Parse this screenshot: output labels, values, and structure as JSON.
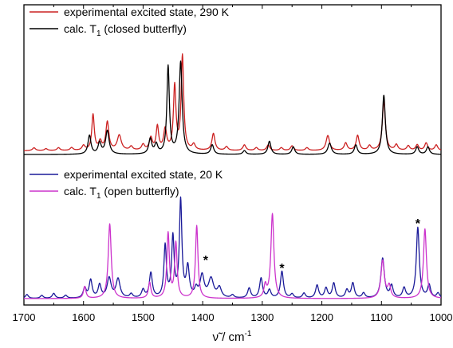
{
  "chart_data": {
    "type": "line",
    "xlabel": "ν̃ / cm",
    "xlabel_superscript": "-1",
    "xlim": [
      1700,
      1000
    ],
    "x_reversed": true,
    "x_ticks": [
      1700,
      1600,
      1500,
      1400,
      1300,
      1200,
      1100,
      1000
    ],
    "panels": [
      {
        "position": "top",
        "legend": [
          {
            "series": "exp290",
            "label": "experimental excited state, 290 K"
          },
          {
            "series": "calc_closed",
            "label_main": "calc. T",
            "label_sub": "1",
            "label_tail": " (closed butterfly)"
          }
        ],
        "series": [
          {
            "id": "exp290",
            "color": "#cc2222",
            "baseline": 0.04,
            "peaks": [
              [
                1683,
                0.03,
                3
              ],
              [
                1663,
                0.02,
                3
              ],
              [
                1642,
                0.03,
                3
              ],
              [
                1620,
                0.03,
                3
              ],
              [
                1600,
                0.05,
                3
              ],
              [
                1584,
                0.38,
                2.5
              ],
              [
                1572,
                0.09,
                3
              ],
              [
                1560,
                0.3,
                3
              ],
              [
                1540,
                0.16,
                4
              ],
              [
                1520,
                0.04,
                3
              ],
              [
                1500,
                0.06,
                3
              ],
              [
                1487,
                0.13,
                3
              ],
              [
                1476,
                0.25,
                2.5
              ],
              [
                1463,
                0.22,
                3
              ],
              [
                1447,
                0.68,
                2.5
              ],
              [
                1434,
                1.0,
                2.5
              ],
              [
                1415,
                0.06,
                3
              ],
              [
                1382,
                0.18,
                3
              ],
              [
                1360,
                0.04,
                3
              ],
              [
                1330,
                0.06,
                3
              ],
              [
                1310,
                0.03,
                3
              ],
              [
                1290,
                0.06,
                3
              ],
              [
                1268,
                0.03,
                3
              ],
              [
                1250,
                0.05,
                3
              ],
              [
                1225,
                0.03,
                3
              ],
              [
                1190,
                0.16,
                3.5
              ],
              [
                1160,
                0.08,
                3
              ],
              [
                1140,
                0.16,
                3
              ],
              [
                1120,
                0.05,
                3
              ],
              [
                1096,
                0.53,
                3
              ],
              [
                1075,
                0.06,
                3
              ],
              [
                1055,
                0.05,
                3
              ],
              [
                1040,
                0.06,
                3
              ],
              [
                1025,
                0.08,
                3
              ],
              [
                1008,
                0.06,
                3
              ]
            ]
          },
          {
            "id": "calc_closed",
            "color": "#000000",
            "baseline": 0.0,
            "peaks": [
              [
                1590,
                0.2,
                3
              ],
              [
                1573,
                0.12,
                3
              ],
              [
                1560,
                0.25,
                3.5
              ],
              [
                1488,
                0.16,
                3
              ],
              [
                1478,
                0.1,
                3
              ],
              [
                1458,
                0.93,
                2.5
              ],
              [
                1437,
                0.98,
                3
              ],
              [
                1384,
                0.1,
                3
              ],
              [
                1330,
                0.04,
                3
              ],
              [
                1288,
                0.14,
                3
              ],
              [
                1248,
                0.08,
                3
              ],
              [
                1187,
                0.12,
                3.5
              ],
              [
                1143,
                0.1,
                3
              ],
              [
                1096,
                0.63,
                3
              ],
              [
                1040,
                0.08,
                3
              ],
              [
                1022,
                0.08,
                3
              ]
            ]
          }
        ]
      },
      {
        "position": "bottom",
        "legend": [
          {
            "series": "exp20",
            "label": "experimental excited state, 20 K"
          },
          {
            "series": "calc_open",
            "label_main": "calc. T",
            "label_sub": "1",
            "label_tail": " (open butterfly)"
          }
        ],
        "annotations": [
          {
            "text": "*",
            "x": 1395,
            "y": 0.36
          },
          {
            "text": "*",
            "x": 1267,
            "y": 0.28
          },
          {
            "text": "*",
            "x": 1039,
            "y": 0.73
          }
        ],
        "series": [
          {
            "id": "exp20",
            "color": "#1a1a99",
            "baseline": 0.0,
            "peaks": [
              [
                1695,
                0.04,
                3
              ],
              [
                1670,
                0.03,
                3
              ],
              [
                1650,
                0.05,
                3
              ],
              [
                1630,
                0.03,
                3
              ],
              [
                1598,
                0.1,
                3
              ],
              [
                1588,
                0.18,
                3
              ],
              [
                1573,
                0.13,
                3
              ],
              [
                1557,
                0.2,
                4
              ],
              [
                1542,
                0.19,
                4
              ],
              [
                1520,
                0.04,
                3
              ],
              [
                1500,
                0.08,
                3
              ],
              [
                1487,
                0.25,
                3
              ],
              [
                1463,
                0.52,
                2.5
              ],
              [
                1450,
                0.6,
                2.5
              ],
              [
                1437,
                0.97,
                2.5
              ],
              [
                1425,
                0.3,
                3
              ],
              [
                1411,
                0.08,
                3
              ],
              [
                1401,
                0.22,
                4
              ],
              [
                1386,
                0.19,
                5
              ],
              [
                1372,
                0.1,
                4
              ],
              [
                1350,
                0.03,
                3
              ],
              [
                1322,
                0.1,
                3
              ],
              [
                1302,
                0.2,
                3
              ],
              [
                1288,
                0.08,
                3
              ],
              [
                1267,
                0.27,
                3
              ],
              [
                1250,
                0.04,
                3
              ],
              [
                1230,
                0.05,
                3
              ],
              [
                1208,
                0.13,
                3
              ],
              [
                1193,
                0.1,
                3
              ],
              [
                1180,
                0.15,
                3
              ],
              [
                1158,
                0.08,
                3
              ],
              [
                1148,
                0.15,
                3
              ],
              [
                1130,
                0.05,
                3
              ],
              [
                1098,
                0.4,
                3.5
              ],
              [
                1083,
                0.12,
                3
              ],
              [
                1062,
                0.1,
                3
              ],
              [
                1039,
                0.71,
                3
              ],
              [
                1020,
                0.13,
                3
              ],
              [
                1005,
                0.05,
                3
              ]
            ]
          },
          {
            "id": "calc_open",
            "color": "#cc33cc",
            "baseline": 0.0,
            "peaks": [
              [
                1598,
                0.12,
                2.5
              ],
              [
                1556,
                0.75,
                3
              ],
              [
                1489,
                0.16,
                2.5
              ],
              [
                1458,
                0.65,
                2.5
              ],
              [
                1445,
                0.55,
                2.5
              ],
              [
                1410,
                0.73,
                2.5
              ],
              [
                1295,
                0.12,
                2.5
              ],
              [
                1283,
                0.85,
                3
              ],
              [
                1098,
                0.38,
                3.5
              ],
              [
                1087,
                0.12,
                3
              ],
              [
                1027,
                0.7,
                3
              ]
            ]
          }
        ]
      }
    ]
  }
}
